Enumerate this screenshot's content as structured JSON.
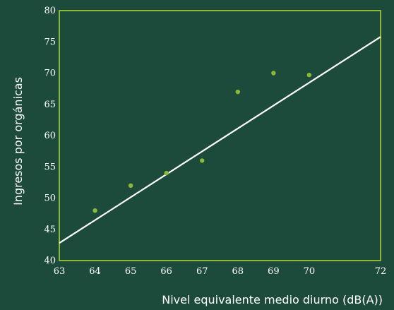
{
  "chart_data": {
    "type": "scatter",
    "xlabel": "Nivel equivalente medio diurno (dB(A))",
    "ylabel": "Ingresos por orgánicas",
    "xlim": [
      63,
      72
    ],
    "ylim": [
      40,
      80
    ],
    "x_ticks": [
      "63",
      "64",
      "65",
      "66",
      "67",
      "68",
      "69",
      "70",
      "72"
    ],
    "y_ticks": [
      "40",
      "45",
      "50",
      "55",
      "60",
      "65",
      "70",
      "75",
      "80"
    ],
    "grid": false,
    "series": [
      {
        "points": [
          {
            "x": 64,
            "y": 48
          },
          {
            "x": 65,
            "y": 52
          },
          {
            "x": 66,
            "y": 54
          },
          {
            "x": 67,
            "y": 56
          },
          {
            "x": 68,
            "y": 67
          },
          {
            "x": 69,
            "y": 70
          },
          {
            "x": 70,
            "y": 69.7
          }
        ]
      }
    ],
    "trend_line": {
      "x": [
        63,
        72
      ],
      "y": [
        42.8,
        75.8
      ]
    },
    "colors": {
      "background": "#1d4b3b",
      "frame": "#8cb83a",
      "points": "#8cb83a",
      "trend_line": "#ffffff",
      "text": "#ffffff"
    }
  }
}
